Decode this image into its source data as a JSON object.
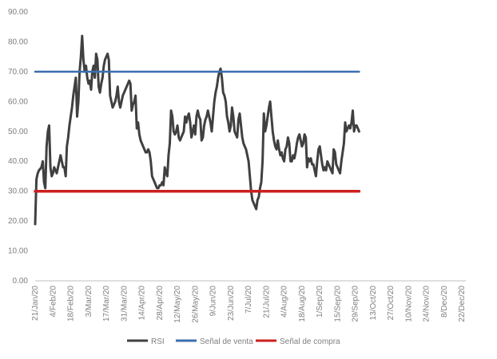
{
  "chart_data": {
    "type": "line",
    "ylim": [
      0,
      90
    ],
    "yticks": [
      "0.00",
      "10.00",
      "20.00",
      "30.00",
      "40.00",
      "50.00",
      "60.00",
      "70.00",
      "80.00",
      "90.00"
    ],
    "xtick_labels": [
      "21/Jan/20",
      "4/Feb/20",
      "18/Feb/20",
      "3/Mar/20",
      "17/Mar/20",
      "31/Mar/20",
      "14/Apr/20",
      "28/Apr/20",
      "12/May/20",
      "26/May/20",
      "9/Jun/20",
      "23/Jun/20",
      "7/Jul/20",
      "21/Jul/20",
      "4/Aug/20",
      "18/Aug/20",
      "1/Sep/20",
      "15/Sep/20",
      "29/Sep/20",
      "13/Oct/20",
      "27/Oct/20",
      "10/Nov/20",
      "24/Nov/20",
      "8/Dec/20",
      "22/Dec/20"
    ],
    "x_day_range": [
      0,
      339
    ],
    "series": [
      {
        "name": "RSI",
        "color": "#404040",
        "points": [
          [
            0,
            19
          ],
          [
            1,
            34
          ],
          [
            2,
            36
          ],
          [
            3,
            37
          ],
          [
            4,
            37.5
          ],
          [
            5,
            38
          ],
          [
            6,
            40
          ],
          [
            7,
            33
          ],
          [
            8,
            31
          ],
          [
            9,
            45
          ],
          [
            10,
            50
          ],
          [
            11,
            52
          ],
          [
            12,
            38
          ],
          [
            13,
            35
          ],
          [
            14,
            36
          ],
          [
            15,
            38
          ],
          [
            16,
            37
          ],
          [
            17,
            36
          ],
          [
            18,
            38
          ],
          [
            19,
            40
          ],
          [
            20,
            42
          ],
          [
            21,
            40
          ],
          [
            22,
            38
          ],
          [
            23,
            38
          ],
          [
            24,
            35
          ],
          [
            25,
            45
          ],
          [
            26,
            48
          ],
          [
            27,
            52
          ],
          [
            28,
            55
          ],
          [
            29,
            58
          ],
          [
            30,
            62
          ],
          [
            31,
            65
          ],
          [
            32,
            68
          ],
          [
            33,
            55
          ],
          [
            34,
            60
          ],
          [
            35,
            70
          ],
          [
            36,
            75
          ],
          [
            37,
            82
          ],
          [
            38,
            74
          ],
          [
            39,
            70
          ],
          [
            40,
            72
          ],
          [
            41,
            68
          ],
          [
            42,
            66
          ],
          [
            43,
            67
          ],
          [
            44,
            64
          ],
          [
            45,
            70
          ],
          [
            46,
            72
          ],
          [
            47,
            68
          ],
          [
            48,
            76
          ],
          [
            49,
            74
          ],
          [
            50,
            65
          ],
          [
            51,
            63
          ],
          [
            52,
            66
          ],
          [
            53,
            68
          ],
          [
            54,
            72
          ],
          [
            55,
            74
          ],
          [
            56,
            75
          ],
          [
            57,
            76
          ],
          [
            58,
            74
          ],
          [
            59,
            62
          ],
          [
            60,
            60
          ],
          [
            61,
            58
          ],
          [
            62,
            59
          ],
          [
            63,
            60
          ],
          [
            64,
            62
          ],
          [
            65,
            65
          ],
          [
            66,
            60
          ],
          [
            67,
            58
          ],
          [
            68,
            60
          ],
          [
            69,
            62
          ],
          [
            70,
            63
          ],
          [
            71,
            64
          ],
          [
            72,
            65
          ],
          [
            73,
            66
          ],
          [
            74,
            67
          ],
          [
            75,
            66
          ],
          [
            76,
            57
          ],
          [
            77,
            59
          ],
          [
            78,
            60
          ],
          [
            79,
            62
          ],
          [
            80,
            51
          ],
          [
            81,
            53
          ],
          [
            82,
            49
          ],
          [
            83,
            47
          ],
          [
            84,
            46
          ],
          [
            85,
            45
          ],
          [
            86,
            44
          ],
          [
            87,
            43
          ],
          [
            88,
            43
          ],
          [
            89,
            44
          ],
          [
            90,
            43
          ],
          [
            91,
            40
          ],
          [
            92,
            35
          ],
          [
            93,
            34
          ],
          [
            94,
            33
          ],
          [
            95,
            32
          ],
          [
            96,
            31
          ],
          [
            97,
            31
          ],
          [
            98,
            32
          ],
          [
            99,
            32
          ],
          [
            100,
            33
          ],
          [
            101,
            32
          ],
          [
            102,
            38
          ],
          [
            103,
            36
          ],
          [
            104,
            35
          ],
          [
            105,
            42
          ],
          [
            106,
            46
          ],
          [
            107,
            57
          ],
          [
            108,
            55
          ],
          [
            109,
            50
          ],
          [
            110,
            49
          ],
          [
            111,
            50
          ],
          [
            112,
            52
          ],
          [
            113,
            48
          ],
          [
            114,
            47
          ],
          [
            115,
            48
          ],
          [
            116,
            49
          ],
          [
            117,
            50
          ],
          [
            118,
            55
          ],
          [
            119,
            53
          ],
          [
            120,
            55
          ],
          [
            121,
            56
          ],
          [
            122,
            53
          ],
          [
            123,
            48
          ],
          [
            124,
            50
          ],
          [
            125,
            52
          ],
          [
            126,
            49
          ],
          [
            127,
            55
          ],
          [
            128,
            57
          ],
          [
            129,
            55
          ],
          [
            130,
            54
          ],
          [
            131,
            47
          ],
          [
            132,
            48
          ],
          [
            133,
            52
          ],
          [
            134,
            54
          ],
          [
            135,
            55
          ],
          [
            136,
            57
          ],
          [
            137,
            55
          ],
          [
            138,
            53
          ],
          [
            139,
            50
          ],
          [
            140,
            55
          ],
          [
            141,
            60
          ],
          [
            142,
            63
          ],
          [
            143,
            65
          ],
          [
            144,
            68
          ],
          [
            145,
            70
          ],
          [
            146,
            71
          ],
          [
            147,
            68
          ],
          [
            148,
            63
          ],
          [
            149,
            62
          ],
          [
            150,
            60
          ],
          [
            151,
            55
          ],
          [
            152,
            53
          ],
          [
            153,
            50
          ],
          [
            154,
            52
          ],
          [
            155,
            58
          ],
          [
            156,
            55
          ],
          [
            157,
            50
          ],
          [
            158,
            49
          ],
          [
            159,
            48
          ],
          [
            160,
            54
          ],
          [
            161,
            56
          ],
          [
            162,
            52
          ],
          [
            163,
            48
          ],
          [
            164,
            46
          ],
          [
            165,
            45
          ],
          [
            166,
            44
          ],
          [
            167,
            42
          ],
          [
            168,
            40
          ],
          [
            169,
            35
          ],
          [
            170,
            30
          ],
          [
            171,
            27
          ],
          [
            172,
            26
          ],
          [
            173,
            25
          ],
          [
            174,
            24
          ],
          [
            175,
            27
          ],
          [
            176,
            28
          ],
          [
            177,
            31
          ],
          [
            178,
            33
          ],
          [
            179,
            40
          ],
          [
            180,
            56
          ],
          [
            181,
            50
          ],
          [
            182,
            52
          ],
          [
            183,
            55
          ],
          [
            184,
            58
          ],
          [
            185,
            60
          ],
          [
            186,
            55
          ],
          [
            187,
            50
          ],
          [
            188,
            47
          ],
          [
            189,
            45
          ],
          [
            190,
            44
          ],
          [
            191,
            47
          ],
          [
            192,
            44
          ],
          [
            193,
            42
          ],
          [
            194,
            43
          ],
          [
            195,
            41
          ],
          [
            196,
            40
          ],
          [
            197,
            44
          ],
          [
            198,
            45
          ],
          [
            199,
            48
          ],
          [
            200,
            46
          ],
          [
            201,
            40
          ],
          [
            202,
            40
          ],
          [
            203,
            42
          ],
          [
            204,
            41
          ],
          [
            205,
            43
          ],
          [
            206,
            46
          ],
          [
            207,
            48
          ],
          [
            208,
            49
          ],
          [
            209,
            47
          ],
          [
            210,
            45
          ],
          [
            211,
            46
          ],
          [
            212,
            49
          ],
          [
            213,
            48
          ],
          [
            214,
            38
          ],
          [
            215,
            41
          ],
          [
            216,
            40
          ],
          [
            217,
            41
          ],
          [
            218,
            39
          ],
          [
            219,
            39
          ],
          [
            220,
            37
          ],
          [
            221,
            35
          ],
          [
            222,
            40
          ],
          [
            223,
            44
          ],
          [
            224,
            45
          ],
          [
            225,
            42
          ],
          [
            226,
            39
          ],
          [
            227,
            37
          ],
          [
            228,
            38
          ],
          [
            229,
            37
          ],
          [
            230,
            40
          ],
          [
            231,
            39
          ],
          [
            232,
            38
          ],
          [
            233,
            37
          ],
          [
            234,
            36
          ],
          [
            235,
            44
          ],
          [
            236,
            43
          ],
          [
            237,
            39
          ],
          [
            238,
            38
          ],
          [
            239,
            37
          ],
          [
            240,
            36
          ],
          [
            241,
            40
          ],
          [
            242,
            43
          ],
          [
            243,
            46
          ],
          [
            244,
            53
          ],
          [
            245,
            50
          ],
          [
            246,
            51
          ],
          [
            247,
            52
          ],
          [
            248,
            51
          ],
          [
            249,
            53
          ],
          [
            250,
            57
          ],
          [
            251,
            50
          ],
          [
            252,
            52
          ],
          [
            253,
            52
          ],
          [
            254,
            51
          ],
          [
            255,
            50
          ]
        ]
      },
      {
        "name": "Señal de venta",
        "color": "#3a6fb0",
        "points": [
          [
            0,
            70
          ],
          [
            255,
            70
          ]
        ]
      },
      {
        "name": "Señal de compra",
        "color": "#cc1f1f",
        "points": [
          [
            0,
            30
          ],
          [
            255,
            30
          ]
        ]
      }
    ],
    "legend": [
      "RSI",
      "Señal de venta",
      "Señal de compra"
    ],
    "legend_position": "bottom",
    "grid": false
  }
}
